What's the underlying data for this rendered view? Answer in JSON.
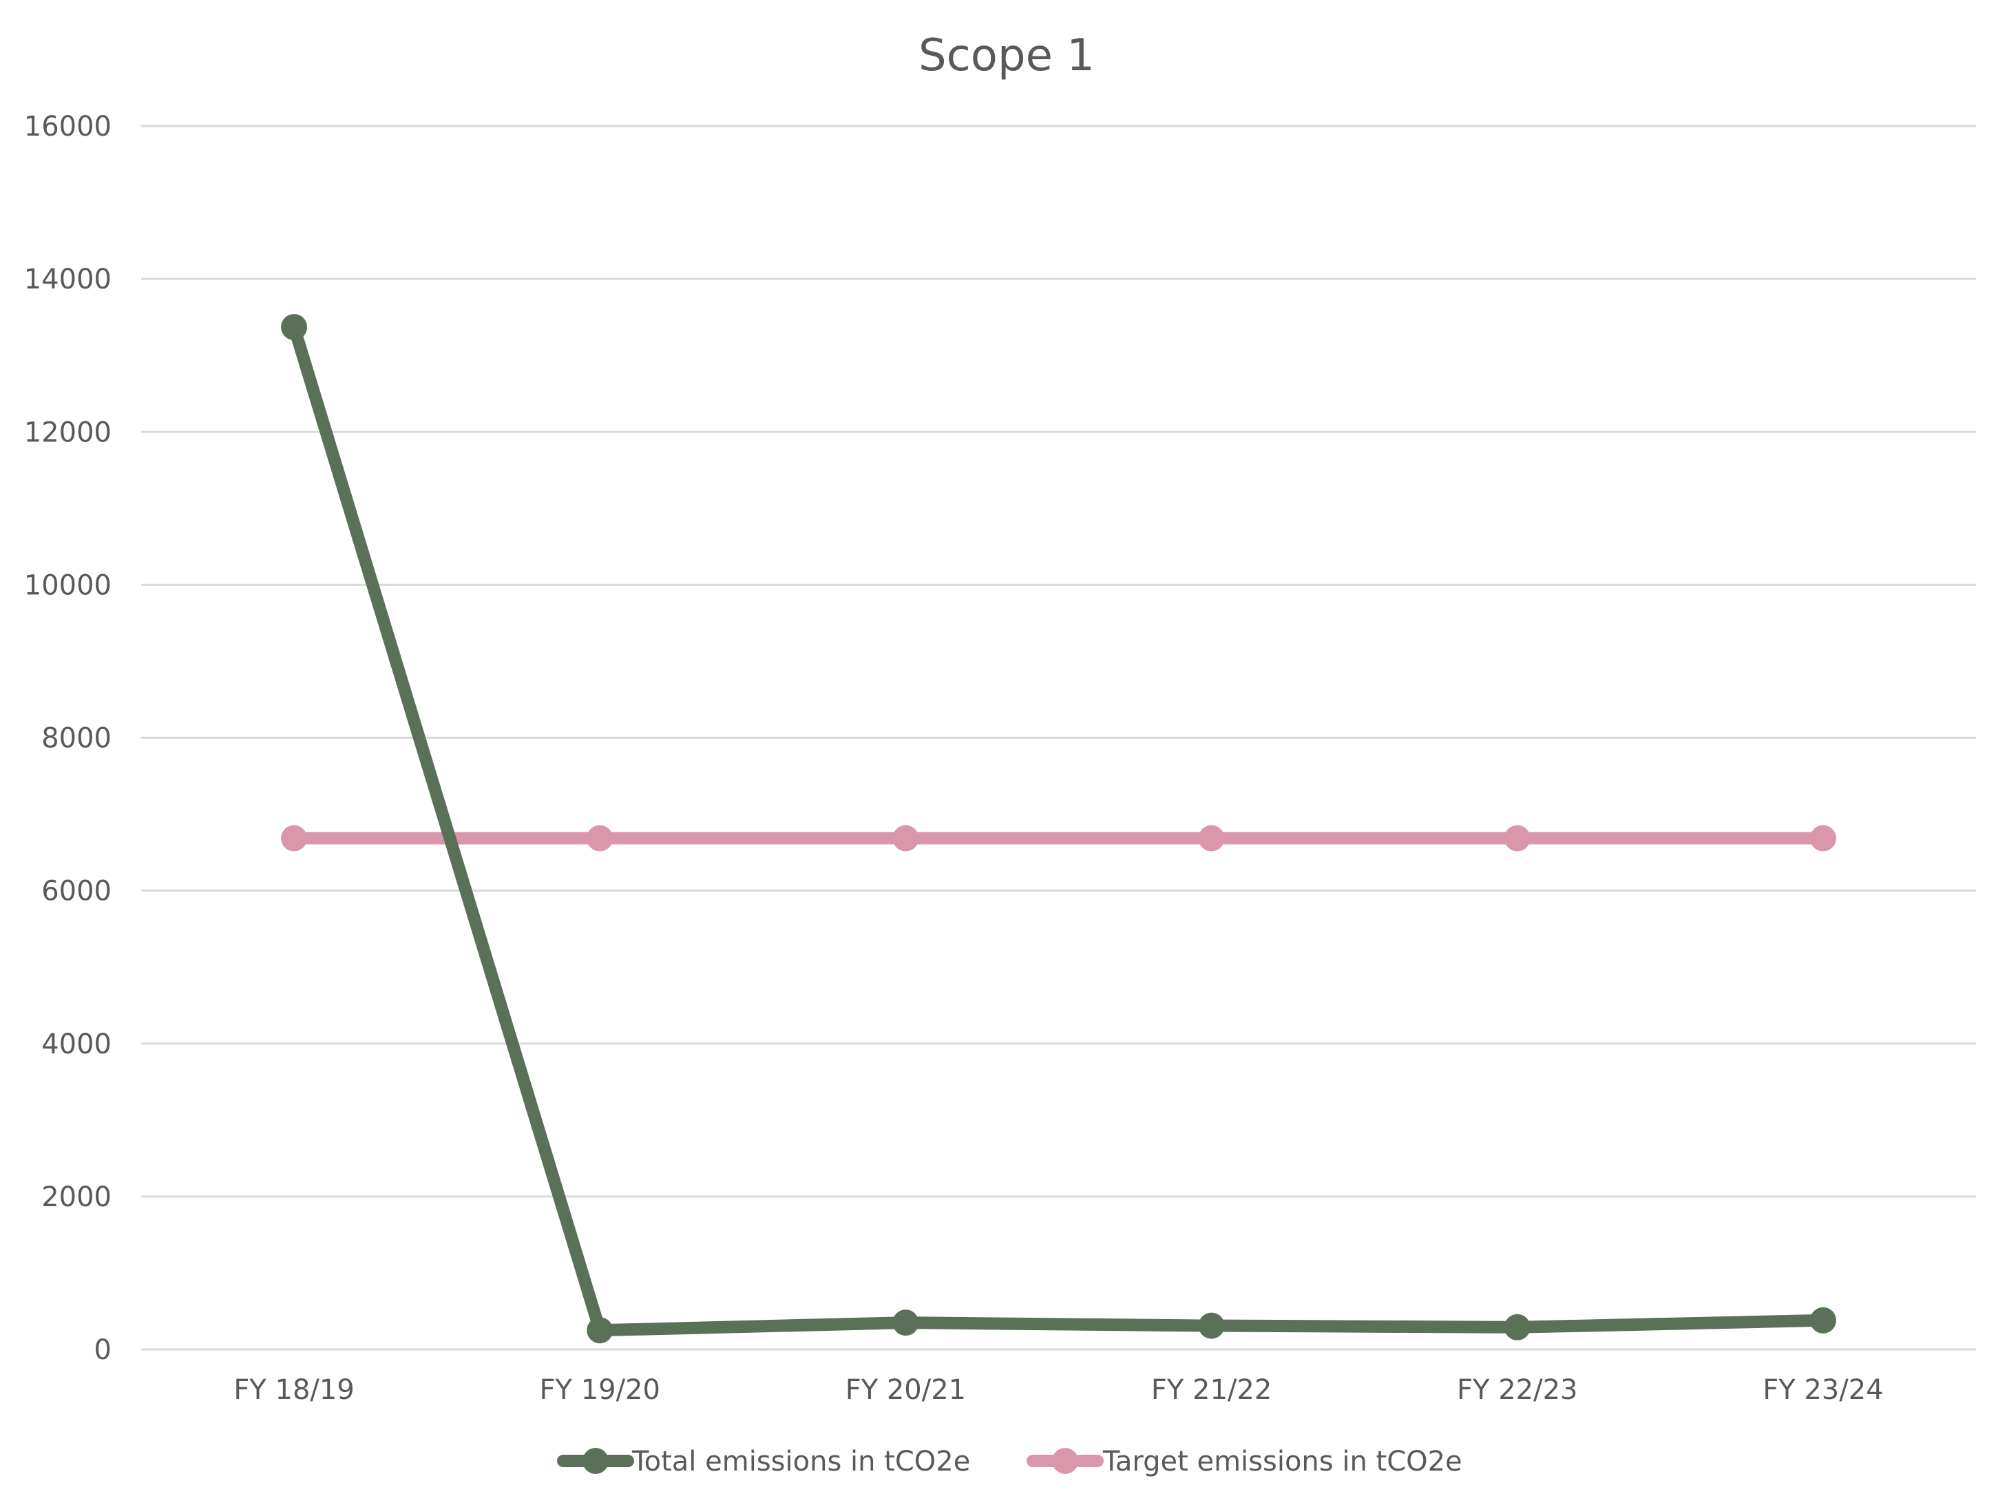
{
  "chart_data": {
    "type": "line",
    "title": "Scope 1",
    "xlabel": "",
    "ylabel": "",
    "categories": [
      "FY 18/19",
      "FY 19/20",
      "FY 20/21",
      "FY 21/22",
      "FY 22/23",
      "FY 23/24"
    ],
    "y_ticks": [
      "0",
      "2000",
      "4000",
      "6000",
      "8000",
      "10000",
      "12000",
      "14000",
      "16000"
    ],
    "ylim": [
      0,
      16000
    ],
    "grid": true,
    "legend_position": "bottom",
    "series": [
      {
        "name": "Total emissions in tCO2e",
        "color": "#5b7059",
        "values": [
          13370,
          250,
          350,
          310,
          290,
          380
        ]
      },
      {
        "name": "Target emissions in tCO2e",
        "color": "#da97ab",
        "values": [
          6685,
          6685,
          6685,
          6685,
          6685,
          6685
        ]
      }
    ]
  }
}
